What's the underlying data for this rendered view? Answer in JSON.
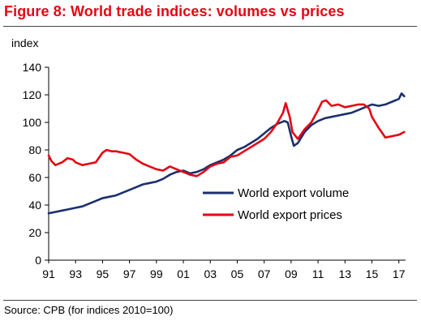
{
  "figure": {
    "title": "Figure 8: World trade indices: volumes vs prices",
    "source": "Source:  CPB (for indices 2010=100)"
  },
  "colors": {
    "title": "#e30613",
    "volume": "#1b2f6e",
    "prices": "#e30613",
    "axis": "#000000"
  },
  "chart_data": {
    "type": "line",
    "title": "Figure 8: World trade indices: volumes vs prices",
    "ylabel": "index",
    "xlabel": "",
    "ylim": [
      0,
      140
    ],
    "yticks": [
      0,
      20,
      40,
      60,
      80,
      100,
      120,
      140
    ],
    "xlim": [
      1991,
      2017.5
    ],
    "xticks": [
      {
        "value": 1991,
        "label": "91"
      },
      {
        "value": 1993,
        "label": "93"
      },
      {
        "value": 1995,
        "label": "95"
      },
      {
        "value": 1997,
        "label": "97"
      },
      {
        "value": 1999,
        "label": "99"
      },
      {
        "value": 2001,
        "label": "01"
      },
      {
        "value": 2003,
        "label": "03"
      },
      {
        "value": 2005,
        "label": "05"
      },
      {
        "value": 2007,
        "label": "07"
      },
      {
        "value": 2009,
        "label": "09"
      },
      {
        "value": 2011,
        "label": "11"
      },
      {
        "value": 2013,
        "label": "13"
      },
      {
        "value": 2015,
        "label": "15"
      },
      {
        "value": 2017,
        "label": "17"
      }
    ],
    "grid": false,
    "legend_position": "center-right",
    "series": [
      {
        "name": "World export volume",
        "x": [
          1991.0,
          1991.5,
          1992.0,
          1992.5,
          1993.0,
          1993.5,
          1994.0,
          1994.5,
          1995.0,
          1995.5,
          1996.0,
          1996.5,
          1997.0,
          1997.5,
          1998.0,
          1998.5,
          1999.0,
          1999.5,
          2000.0,
          2000.5,
          2001.0,
          2001.5,
          2002.0,
          2002.5,
          2003.0,
          2003.5,
          2004.0,
          2004.5,
          2005.0,
          2005.5,
          2006.0,
          2006.5,
          2007.0,
          2007.5,
          2008.0,
          2008.5,
          2008.75,
          2009.0,
          2009.2,
          2009.5,
          2010.0,
          2010.5,
          2011.0,
          2011.5,
          2012.0,
          2012.5,
          2013.0,
          2013.5,
          2014.0,
          2014.5,
          2015.0,
          2015.5,
          2016.0,
          2016.5,
          2017.0,
          2017.2,
          2017.4
        ],
        "values": [
          34,
          35,
          36,
          37,
          38,
          39,
          41,
          43,
          45,
          46,
          47,
          49,
          51,
          53,
          55,
          56,
          57,
          59,
          62,
          64,
          65,
          63,
          64,
          66,
          69,
          71,
          73,
          76,
          80,
          82,
          85,
          88,
          92,
          96,
          99,
          101,
          100,
          90,
          83,
          85,
          93,
          98,
          101,
          103,
          104,
          105,
          106,
          107,
          109,
          111,
          113,
          112,
          113,
          115,
          117,
          121,
          119
        ]
      },
      {
        "name": "World export prices",
        "x": [
          1991.0,
          1991.2,
          1991.5,
          1992.0,
          1992.4,
          1992.8,
          1993.0,
          1993.5,
          1994.0,
          1994.5,
          1995.0,
          1995.3,
          1995.7,
          1996.0,
          1996.5,
          1997.0,
          1997.5,
          1998.0,
          1998.5,
          1999.0,
          1999.5,
          2000.0,
          2000.5,
          2001.0,
          2001.5,
          2002.0,
          2002.5,
          2003.0,
          2003.5,
          2004.0,
          2004.5,
          2005.0,
          2005.5,
          2006.0,
          2006.5,
          2007.0,
          2007.5,
          2008.0,
          2008.4,
          2008.6,
          2008.9,
          2009.1,
          2009.5,
          2010.0,
          2010.5,
          2011.0,
          2011.3,
          2011.6,
          2012.0,
          2012.5,
          2013.0,
          2013.5,
          2014.0,
          2014.4,
          2014.8,
          2015.0,
          2015.5,
          2016.0,
          2016.5,
          2017.0,
          2017.4
        ],
        "values": [
          76,
          72,
          69,
          71,
          74,
          73,
          71,
          69,
          70,
          71,
          78,
          80,
          79,
          79,
          78,
          77,
          73,
          70,
          68,
          66,
          65,
          68,
          66,
          64,
          62,
          61,
          64,
          68,
          70,
          71,
          75,
          76,
          79,
          82,
          85,
          88,
          93,
          100,
          107,
          114,
          104,
          93,
          88,
          95,
          100,
          109,
          115,
          116,
          112,
          113,
          111,
          112,
          113,
          113,
          110,
          104,
          96,
          89,
          90,
          91,
          93
        ]
      }
    ]
  }
}
